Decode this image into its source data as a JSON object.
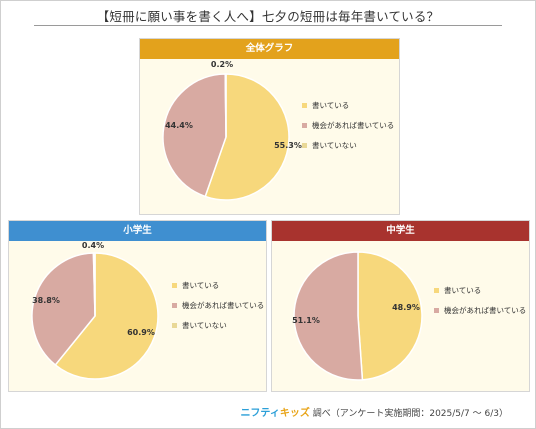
{
  "title": "【短冊に願い事を書く人へ】七夕の短冊は毎年書いている？",
  "colors": {
    "written": "#f7d87c",
    "sometimes": "#d8aaa2",
    "not_written": "#f8e9b0",
    "overall_head": "#e3a21c",
    "elem_head": "#3f8fd0",
    "middle_head": "#a8332e"
  },
  "chart_data": [
    {
      "type": "pie",
      "title": "全体グラフ",
      "labels": [
        "書いている",
        "機会があれば書いている",
        "書いていない"
      ],
      "values": [
        55.3,
        44.4,
        0.2
      ],
      "value_labels": [
        "55.3%",
        "44.4%",
        "0.2%"
      ]
    },
    {
      "type": "pie",
      "title": "小学生",
      "labels": [
        "書いている",
        "機会があれば書いている",
        "書いていない"
      ],
      "values": [
        60.9,
        38.8,
        0.4
      ],
      "value_labels": [
        "60.9%",
        "38.8%",
        "0.4%"
      ]
    },
    {
      "type": "pie",
      "title": "中学生",
      "labels": [
        "書いている",
        "機会があれば書いている"
      ],
      "values": [
        48.9,
        51.1
      ],
      "value_labels": [
        "48.9%",
        "51.1%"
      ]
    }
  ],
  "footer": {
    "brand_a": "ニフティ",
    "brand_b": "キッズ",
    "text": "調べ（アンケート実施期間：2025/5/7 ～ 6/3）"
  }
}
